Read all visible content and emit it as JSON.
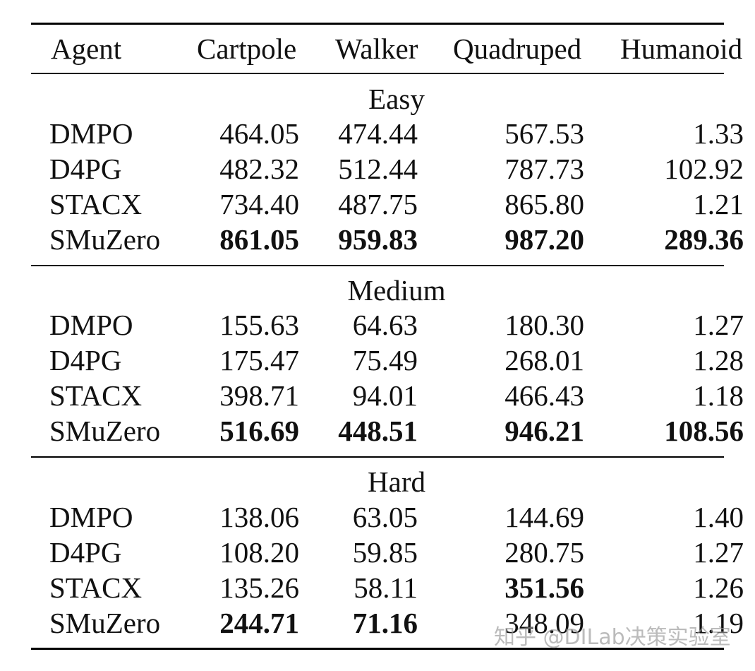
{
  "header": {
    "agent": "Agent",
    "cartpole": "Cartpole",
    "walker": "Walker",
    "quadruped": "Quadruped",
    "humanoid": "Humanoid"
  },
  "groups": [
    {
      "title": "Easy",
      "rows": [
        {
          "agent": "DMPO",
          "cartpole": "464.05",
          "walker": "474.44",
          "quadruped": "567.53",
          "humanoid": "1.33"
        },
        {
          "agent": "D4PG",
          "cartpole": "482.32",
          "walker": "512.44",
          "quadruped": "787.73",
          "humanoid": "102.92"
        },
        {
          "agent": "STACX",
          "cartpole": "734.40",
          "walker": "487.75",
          "quadruped": "865.80",
          "humanoid": "1.21"
        },
        {
          "agent": "SMuZero",
          "cartpole": "861.05",
          "walker": "959.83",
          "quadruped": "987.20",
          "humanoid": "289.36"
        }
      ]
    },
    {
      "title": "Medium",
      "rows": [
        {
          "agent": "DMPO",
          "cartpole": "155.63",
          "walker": "64.63",
          "quadruped": "180.30",
          "humanoid": "1.27"
        },
        {
          "agent": "D4PG",
          "cartpole": "175.47",
          "walker": "75.49",
          "quadruped": "268.01",
          "humanoid": "1.28"
        },
        {
          "agent": "STACX",
          "cartpole": "398.71",
          "walker": "94.01",
          "quadruped": "466.43",
          "humanoid": "1.18"
        },
        {
          "agent": "SMuZero",
          "cartpole": "516.69",
          "walker": "448.51",
          "quadruped": "946.21",
          "humanoid": "108.56"
        }
      ]
    },
    {
      "title": "Hard",
      "rows": [
        {
          "agent": "DMPO",
          "cartpole": "138.06",
          "walker": "63.05",
          "quadruped": "144.69",
          "humanoid": "1.40"
        },
        {
          "agent": "D4PG",
          "cartpole": "108.20",
          "walker": "59.85",
          "quadruped": "280.75",
          "humanoid": "1.27"
        },
        {
          "agent": "STACX",
          "cartpole": "135.26",
          "walker": "58.11",
          "quadruped": "351.56",
          "humanoid": "1.26"
        },
        {
          "agent": "SMuZero",
          "cartpole": "244.71",
          "walker": "71.16",
          "quadruped": "348.09",
          "humanoid": "1.19"
        }
      ]
    }
  ],
  "watermark": "知乎 @DILab决策实验室"
}
